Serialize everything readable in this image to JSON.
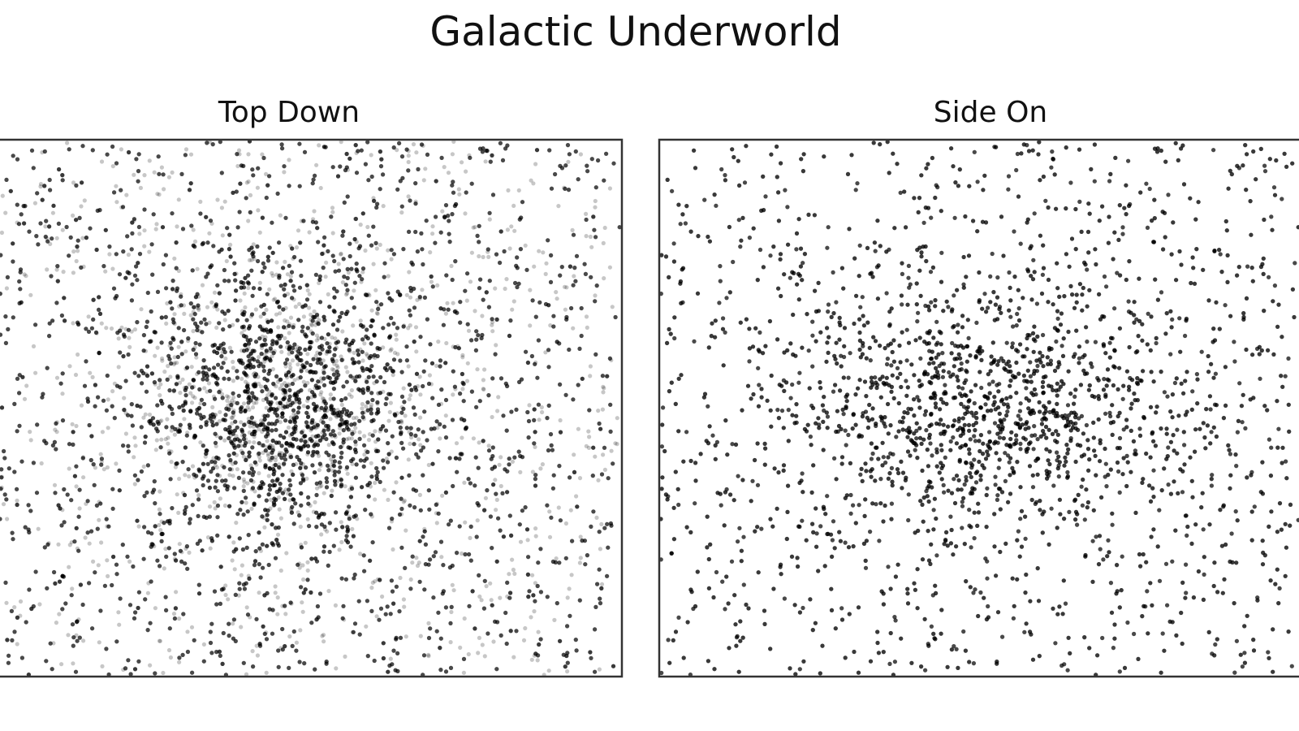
{
  "chart_data": [
    {
      "type": "scatter",
      "title": "Top Down",
      "point_color": "#000000",
      "grid": false,
      "axis_ticks": false
    },
    {
      "type": "scatter",
      "title": "Side On",
      "point_color": "#000000",
      "grid": false,
      "axis_ticks": false
    }
  ],
  "figure": {
    "title": "Galactic Underworld"
  }
}
